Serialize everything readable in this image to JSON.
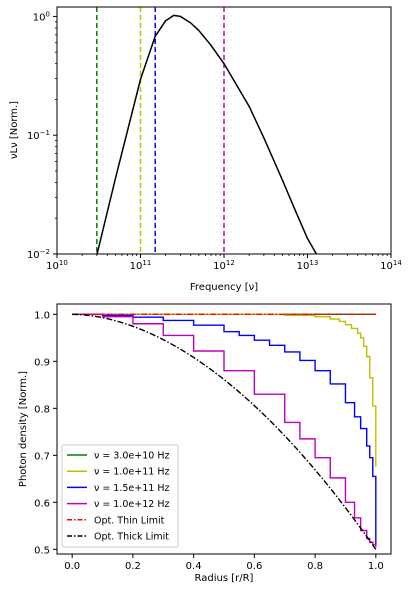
{
  "chart_data": [
    {
      "type": "line",
      "xlabel": "Frequency [ν]",
      "ylabel": "νLν [Norm.]",
      "xscale": "log",
      "yscale": "log",
      "xlim": [
        10000000000.0,
        100000000000000.0
      ],
      "ylim": [
        0.01,
        1.2
      ],
      "xticks": [
        {
          "value": 10000000000.0,
          "base": "10",
          "exp": "10"
        },
        {
          "value": 100000000000.0,
          "base": "10",
          "exp": "11"
        },
        {
          "value": 1000000000000.0,
          "base": "10",
          "exp": "12"
        },
        {
          "value": 10000000000000.0,
          "base": "10",
          "exp": "13"
        },
        {
          "value": 100000000000000.0,
          "base": "10",
          "exp": "14"
        }
      ],
      "yticks": [
        {
          "value": 0.01,
          "base": "10",
          "exp": "−2"
        },
        {
          "value": 0.1,
          "base": "10",
          "exp": "−1"
        },
        {
          "value": 1,
          "base": "10",
          "exp": "0"
        }
      ],
      "spectrum": {
        "color": "#000000",
        "x": [
          30000000000.0,
          50000000000.0,
          100000000000.0,
          150000000000.0,
          200000000000.0,
          250000000000.0,
          300000000000.0,
          400000000000.0,
          500000000000.0,
          700000000000.0,
          1000000000000.0,
          2000000000000.0,
          3000000000000.0,
          5000000000000.0,
          7000000000000.0,
          10000000000000.0,
          13000000000000.0
        ],
        "y": [
          0.0098,
          0.043,
          0.295,
          0.68,
          0.92,
          1.02,
          1.0,
          0.88,
          0.76,
          0.57,
          0.4,
          0.175,
          0.095,
          0.042,
          0.024,
          0.0135,
          0.0098
        ]
      },
      "vlines": [
        {
          "x": 30000000000.0,
          "color": "#008000"
        },
        {
          "x": 100000000000.0,
          "color": "#bfbf00"
        },
        {
          "x": 150000000000.0,
          "color": "#0000ff"
        },
        {
          "x": 1000000000000.0,
          "color": "#bf00bf"
        }
      ]
    },
    {
      "type": "line",
      "xlabel": "Radius [r/R]",
      "ylabel": "Photon density [Norm.]",
      "xlim": [
        -0.05,
        1.05
      ],
      "ylim": [
        0.49,
        1.022
      ],
      "xticks": [
        "0.0",
        "0.2",
        "0.4",
        "0.6",
        "0.8",
        "1.0"
      ],
      "yticks": [
        "0.5",
        "0.6",
        "0.7",
        "0.8",
        "0.9",
        "1.0"
      ],
      "legend_position": "lower-left",
      "series": [
        {
          "name": "ν = 3.0e+10 Hz",
          "color": "#008000",
          "style": "step",
          "x": [
            0.0,
            1.0
          ],
          "y": [
            1.0,
            1.0
          ]
        },
        {
          "name": "ν = 1.0e+11 Hz",
          "color": "#bfbf00",
          "style": "step",
          "x": [
            0.0,
            0.5,
            0.7,
            0.8,
            0.85,
            0.88,
            0.9,
            0.92,
            0.94,
            0.95,
            0.96,
            0.97,
            0.98,
            0.99,
            1.0
          ],
          "y": [
            1.0,
            1.0,
            0.998,
            0.995,
            0.99,
            0.985,
            0.978,
            0.97,
            0.96,
            0.95,
            0.932,
            0.91,
            0.865,
            0.805,
            0.675
          ]
        },
        {
          "name": "ν = 1.5e+11 Hz",
          "color": "#0000ff",
          "style": "step",
          "x": [
            0.0,
            0.1,
            0.2,
            0.3,
            0.4,
            0.5,
            0.55,
            0.6,
            0.65,
            0.7,
            0.75,
            0.8,
            0.85,
            0.9,
            0.93,
            0.95,
            0.97,
            0.98,
            0.99,
            1.0
          ],
          "y": [
            1.0,
            0.998,
            0.994,
            0.987,
            0.977,
            0.963,
            0.955,
            0.945,
            0.934,
            0.92,
            0.902,
            0.88,
            0.852,
            0.812,
            0.782,
            0.757,
            0.72,
            0.695,
            0.655,
            0.51
          ]
        },
        {
          "name": "ν = 1.0e+12 Hz",
          "color": "#bf00bf",
          "style": "step",
          "x": [
            0.0,
            0.1,
            0.2,
            0.3,
            0.4,
            0.5,
            0.6,
            0.7,
            0.75,
            0.8,
            0.85,
            0.9,
            0.93,
            0.95,
            0.97,
            0.98,
            0.99,
            1.0
          ],
          "y": [
            1.0,
            0.995,
            0.98,
            0.955,
            0.922,
            0.88,
            0.83,
            0.77,
            0.735,
            0.695,
            0.652,
            0.6,
            0.567,
            0.54,
            0.523,
            0.515,
            0.51,
            0.505
          ]
        },
        {
          "name": "Opt. Thin Limit",
          "color": "#ff0000",
          "style": "dashdot",
          "curve": "thin"
        },
        {
          "name": "Opt. Thick Limit",
          "color": "#000000",
          "style": "dashdot",
          "curve": "thick"
        }
      ]
    }
  ]
}
